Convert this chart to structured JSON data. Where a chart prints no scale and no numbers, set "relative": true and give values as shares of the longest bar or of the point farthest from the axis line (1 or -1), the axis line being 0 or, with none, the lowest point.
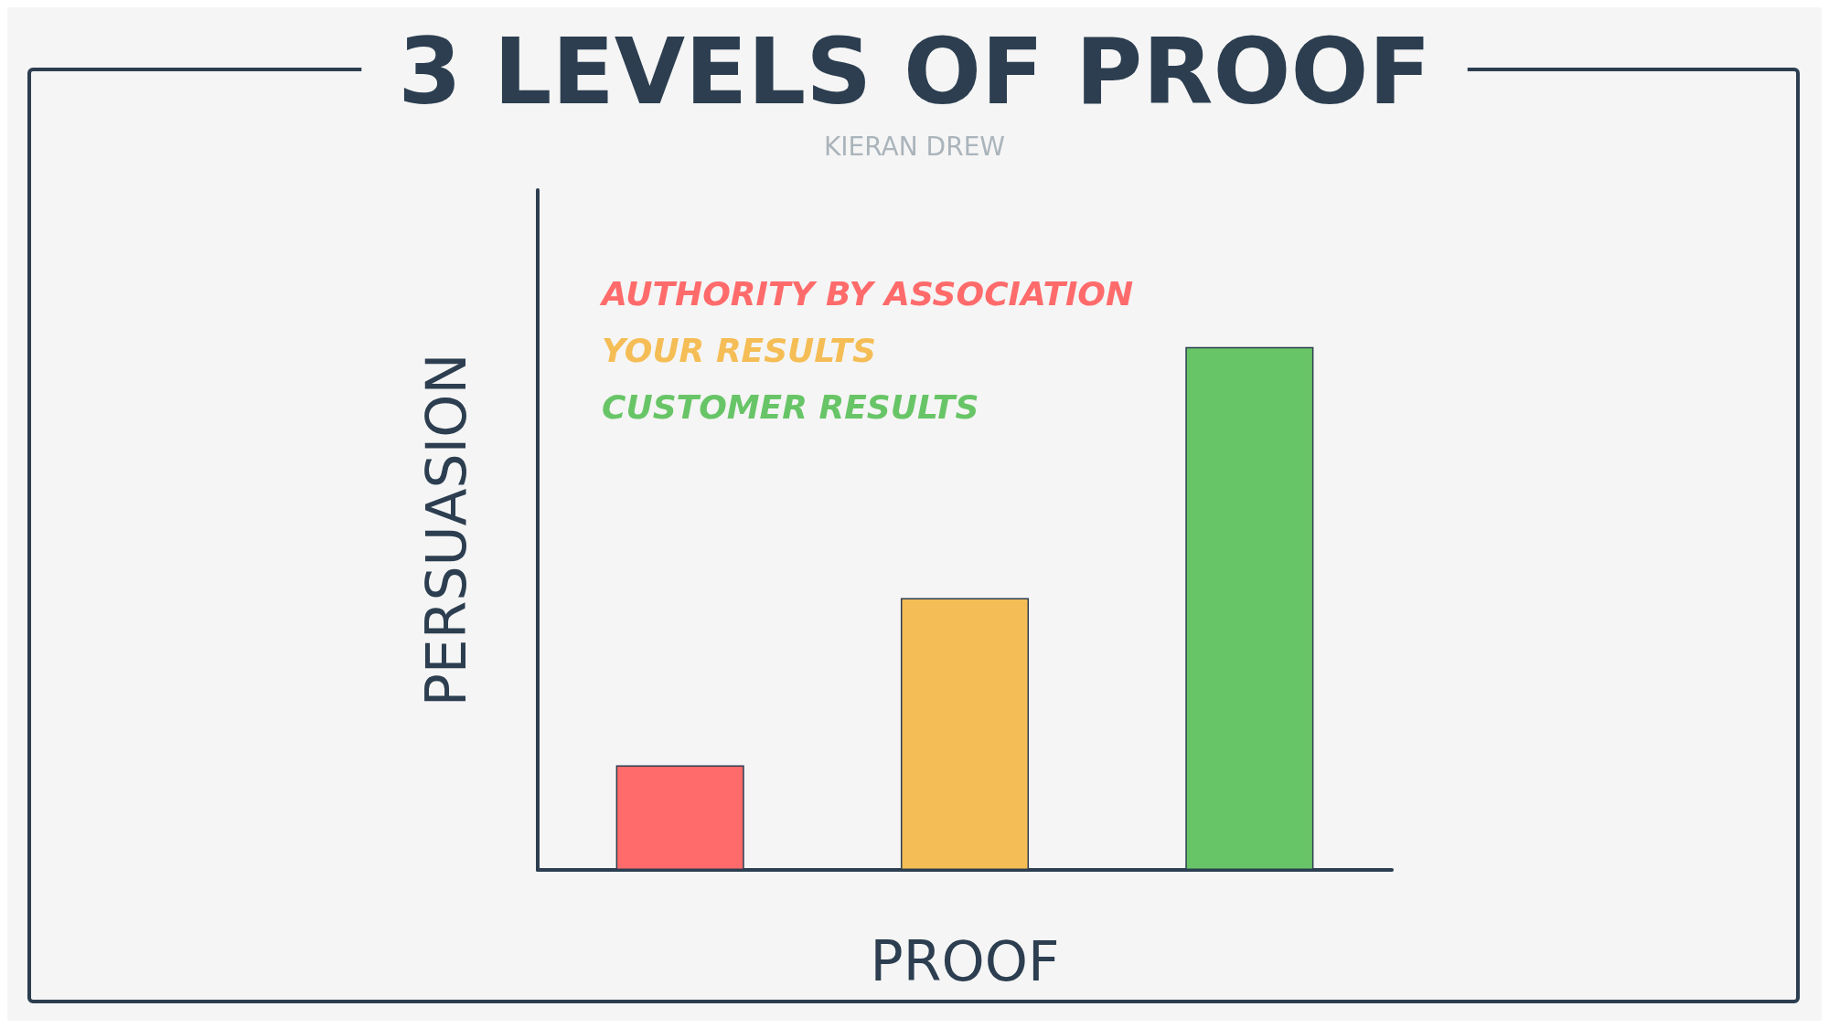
{
  "chart_data": {
    "type": "bar",
    "title": "3 LEVELS OF PROOF",
    "subtitle": "KIERAN DREW",
    "xlabel": "PROOF",
    "ylabel": "PERSUASION",
    "relative": true,
    "stacked": true,
    "categories": [
      null,
      null,
      null
    ],
    "legend": "top left",
    "grid": false,
    "series": [
      {
        "name": "AUTHORITY BY ASSOCIATION",
        "color": "#ff6b6b",
        "values": [
          0.2,
          null,
          null
        ]
      },
      {
        "name": "YOUR RESULTS",
        "color": "#f5bd55",
        "values": [
          null,
          0.52,
          null
        ]
      },
      {
        "name": "CUSTOMER RESULTS",
        "color": "#68c567",
        "values": [
          null,
          null,
          1
        ]
      }
    ]
  }
}
